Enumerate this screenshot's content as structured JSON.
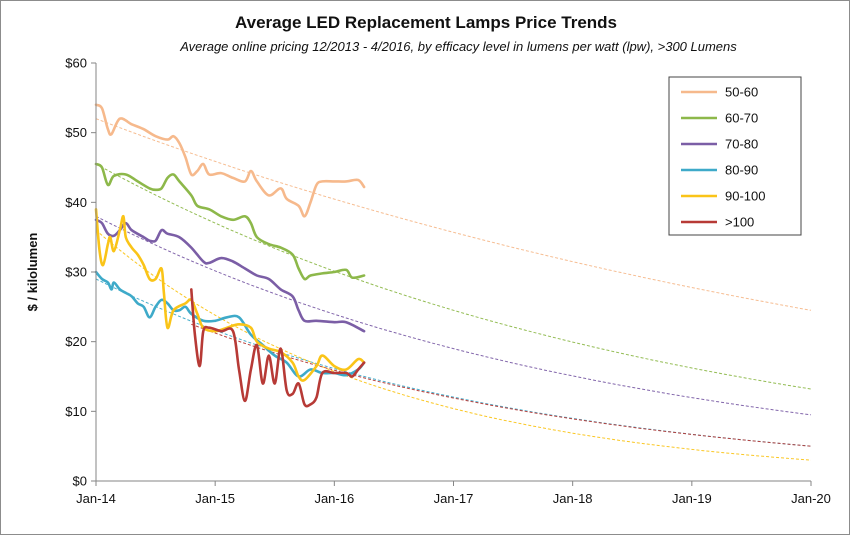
{
  "chart_data": {
    "type": "line",
    "title": "Average LED Replacement Lamps Price Trends",
    "subtitle": "Average online pricing 12/2013 - 4/2016, by efficacy level in lumens per watt (lpw), >300 Lumens",
    "ylabel": "$ / kilolumen",
    "xlabel": "",
    "xlim": [
      2014,
      2020
    ],
    "ylim": [
      0,
      60
    ],
    "x_tick_labels": [
      "Jan-14",
      "Jan-15",
      "Jan-16",
      "Jan-17",
      "Jan-18",
      "Jan-19",
      "Jan-20"
    ],
    "y_tick_labels": [
      "$0",
      "$10",
      "$20",
      "$30",
      "$40",
      "$50",
      "$60"
    ],
    "grid": false,
    "legend_position": "top-right",
    "series": [
      {
        "name": "50-60",
        "color": "#f6b98c",
        "points": [
          [
            2014.0,
            54
          ],
          [
            2014.05,
            53.5
          ],
          [
            2014.1,
            50.5
          ],
          [
            2014.13,
            49.8
          ],
          [
            2014.2,
            52
          ],
          [
            2014.3,
            51.2
          ],
          [
            2014.4,
            50.5
          ],
          [
            2014.5,
            49.5
          ],
          [
            2014.6,
            49
          ],
          [
            2014.65,
            49.5
          ],
          [
            2014.7,
            48.5
          ],
          [
            2014.75,
            46.5
          ],
          [
            2014.8,
            44
          ],
          [
            2014.85,
            44.5
          ],
          [
            2014.9,
            45.5
          ],
          [
            2014.95,
            44
          ],
          [
            2015.05,
            44.2
          ],
          [
            2015.15,
            43.5
          ],
          [
            2015.25,
            43
          ],
          [
            2015.3,
            44.5
          ],
          [
            2015.35,
            43
          ],
          [
            2015.45,
            41
          ],
          [
            2015.55,
            42
          ],
          [
            2015.6,
            40.5
          ],
          [
            2015.7,
            39.5
          ],
          [
            2015.75,
            38
          ],
          [
            2015.8,
            40
          ],
          [
            2015.85,
            42.5
          ],
          [
            2015.9,
            43
          ],
          [
            2016.0,
            43
          ],
          [
            2016.1,
            43
          ],
          [
            2016.2,
            43.2
          ],
          [
            2016.25,
            42.2
          ]
        ],
        "trend": [
          [
            2014,
            52
          ],
          [
            2020,
            24.5
          ]
        ]
      },
      {
        "name": "60-70",
        "color": "#8db84a",
        "points": [
          [
            2014.0,
            45.5
          ],
          [
            2014.05,
            45
          ],
          [
            2014.1,
            42.5
          ],
          [
            2014.15,
            43.8
          ],
          [
            2014.25,
            44
          ],
          [
            2014.35,
            43
          ],
          [
            2014.45,
            42
          ],
          [
            2014.5,
            41.8
          ],
          [
            2014.55,
            42
          ],
          [
            2014.6,
            43.5
          ],
          [
            2014.65,
            44
          ],
          [
            2014.7,
            43
          ],
          [
            2014.8,
            41
          ],
          [
            2014.85,
            39.5
          ],
          [
            2014.95,
            39
          ],
          [
            2015.05,
            38
          ],
          [
            2015.15,
            37.5
          ],
          [
            2015.25,
            38
          ],
          [
            2015.3,
            37
          ],
          [
            2015.35,
            35
          ],
          [
            2015.45,
            34
          ],
          [
            2015.55,
            33.5
          ],
          [
            2015.65,
            32.5
          ],
          [
            2015.7,
            30.5
          ],
          [
            2015.75,
            29
          ],
          [
            2015.8,
            29.5
          ],
          [
            2015.9,
            29.8
          ],
          [
            2016.0,
            30
          ],
          [
            2016.1,
            30.3
          ],
          [
            2016.15,
            29.2
          ],
          [
            2016.25,
            29.5
          ]
        ],
        "trend": [
          [
            2014,
            45.5
          ],
          [
            2020,
            13.2
          ]
        ]
      },
      {
        "name": "70-80",
        "color": "#7b5ea6",
        "points": [
          [
            2014.0,
            37.5
          ],
          [
            2014.05,
            37
          ],
          [
            2014.1,
            35.5
          ],
          [
            2014.15,
            35.2
          ],
          [
            2014.2,
            36
          ],
          [
            2014.25,
            37
          ],
          [
            2014.3,
            36
          ],
          [
            2014.4,
            35
          ],
          [
            2014.45,
            34.5
          ],
          [
            2014.5,
            34.5
          ],
          [
            2014.55,
            36
          ],
          [
            2014.6,
            35.5
          ],
          [
            2014.7,
            35
          ],
          [
            2014.8,
            33.5
          ],
          [
            2014.9,
            31.5
          ],
          [
            2014.95,
            31.3
          ],
          [
            2015.05,
            32
          ],
          [
            2015.15,
            31.5
          ],
          [
            2015.25,
            30.5
          ],
          [
            2015.35,
            29.5
          ],
          [
            2015.45,
            29
          ],
          [
            2015.55,
            27.5
          ],
          [
            2015.65,
            26.5
          ],
          [
            2015.7,
            24.5
          ],
          [
            2015.75,
            23
          ],
          [
            2015.85,
            23
          ],
          [
            2016.0,
            22.8
          ],
          [
            2016.1,
            22.8
          ],
          [
            2016.25,
            21.5
          ]
        ],
        "trend": [
          [
            2014,
            38
          ],
          [
            2020,
            9.5
          ]
        ]
      },
      {
        "name": "80-90",
        "color": "#3eaac9",
        "points": [
          [
            2014.0,
            30
          ],
          [
            2014.05,
            29
          ],
          [
            2014.1,
            28.5
          ],
          [
            2014.13,
            27.5
          ],
          [
            2014.15,
            28.5
          ],
          [
            2014.2,
            27.5
          ],
          [
            2014.25,
            27
          ],
          [
            2014.3,
            26.5
          ],
          [
            2014.35,
            25.5
          ],
          [
            2014.4,
            25
          ],
          [
            2014.45,
            23.5
          ],
          [
            2014.5,
            25
          ],
          [
            2014.55,
            26
          ],
          [
            2014.6,
            25.5
          ],
          [
            2014.65,
            24.5
          ],
          [
            2014.7,
            24.5
          ],
          [
            2014.75,
            25
          ],
          [
            2014.8,
            24
          ],
          [
            2014.9,
            23
          ],
          [
            2015.0,
            23
          ],
          [
            2015.1,
            23.5
          ],
          [
            2015.2,
            23.5
          ],
          [
            2015.3,
            21
          ],
          [
            2015.4,
            19.5
          ],
          [
            2015.5,
            18
          ],
          [
            2015.6,
            17
          ],
          [
            2015.7,
            15
          ],
          [
            2015.8,
            16
          ],
          [
            2015.9,
            15.5
          ],
          [
            2016.0,
            15.5
          ],
          [
            2016.1,
            15.2
          ],
          [
            2016.2,
            16
          ],
          [
            2016.25,
            17
          ]
        ],
        "trend": [
          [
            2014,
            29
          ],
          [
            2020,
            5.0
          ]
        ]
      },
      {
        "name": "90-100",
        "color": "#fac418",
        "points": [
          [
            2014.0,
            39
          ],
          [
            2014.03,
            33
          ],
          [
            2014.06,
            31
          ],
          [
            2014.1,
            34
          ],
          [
            2014.12,
            35
          ],
          [
            2014.15,
            33
          ],
          [
            2014.2,
            36
          ],
          [
            2014.23,
            38
          ],
          [
            2014.25,
            35
          ],
          [
            2014.3,
            33.5
          ],
          [
            2014.35,
            32.5
          ],
          [
            2014.4,
            31
          ],
          [
            2014.45,
            29
          ],
          [
            2014.5,
            29
          ],
          [
            2014.55,
            30.5
          ],
          [
            2014.57,
            27
          ],
          [
            2014.6,
            22
          ],
          [
            2014.65,
            24.5
          ],
          [
            2014.75,
            25.5
          ],
          [
            2014.8,
            26
          ],
          [
            2014.85,
            24
          ],
          [
            2014.9,
            22
          ],
          [
            2015.0,
            21.5
          ],
          [
            2015.1,
            22
          ],
          [
            2015.2,
            22.5
          ],
          [
            2015.3,
            22
          ],
          [
            2015.35,
            20
          ],
          [
            2015.45,
            19
          ],
          [
            2015.55,
            18.5
          ],
          [
            2015.65,
            17
          ],
          [
            2015.7,
            15
          ],
          [
            2015.75,
            14.5
          ],
          [
            2015.85,
            16.5
          ],
          [
            2015.9,
            18
          ],
          [
            2016.0,
            16.5
          ],
          [
            2016.1,
            16
          ],
          [
            2016.2,
            17.5
          ],
          [
            2016.25,
            17
          ]
        ],
        "trend": [
          [
            2014,
            36
          ],
          [
            2020,
            3.0
          ]
        ]
      },
      {
        "name": ">100",
        "color": "#b73a36",
        "points": [
          [
            2014.8,
            27.5
          ],
          [
            2014.83,
            21
          ],
          [
            2014.87,
            16.5
          ],
          [
            2014.9,
            21.5
          ],
          [
            2014.95,
            22
          ],
          [
            2015.05,
            21.5
          ],
          [
            2015.15,
            21.5
          ],
          [
            2015.2,
            16
          ],
          [
            2015.25,
            11.5
          ],
          [
            2015.3,
            16
          ],
          [
            2015.35,
            19.5
          ],
          [
            2015.4,
            14
          ],
          [
            2015.45,
            18
          ],
          [
            2015.5,
            14
          ],
          [
            2015.55,
            19
          ],
          [
            2015.6,
            13
          ],
          [
            2015.65,
            12.5
          ],
          [
            2015.7,
            14
          ],
          [
            2015.75,
            11
          ],
          [
            2015.8,
            11
          ],
          [
            2015.85,
            12
          ],
          [
            2015.9,
            15.5
          ],
          [
            2016.0,
            15.5
          ],
          [
            2016.1,
            15.5
          ],
          [
            2016.15,
            15
          ],
          [
            2016.2,
            16
          ],
          [
            2016.25,
            17
          ]
        ],
        "trend": [
          [
            2014.8,
            22.5
          ],
          [
            2020,
            5.0
          ]
        ]
      }
    ]
  }
}
